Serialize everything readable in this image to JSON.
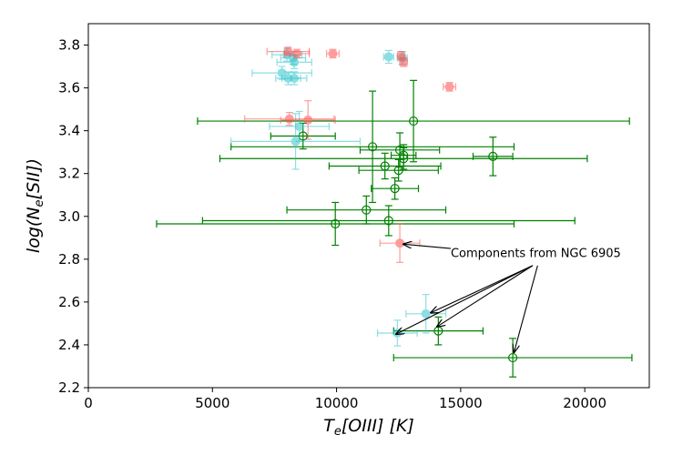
{
  "chart_data": {
    "type": "scatter",
    "title": "",
    "xlabel": "T_e[OIII] [K]",
    "ylabel": "log(N_e[SII])",
    "xlim": [
      0,
      22600
    ],
    "ylim": [
      2.2,
      3.9
    ],
    "xticks": [
      0,
      5000,
      10000,
      15000,
      20000
    ],
    "yticks": [
      2.2,
      2.4,
      2.6,
      2.8,
      3.0,
      3.2,
      3.4,
      3.6,
      3.8
    ],
    "grid": false,
    "colors": {
      "red": "#ff4d4d",
      "cyan": "#2ec4cc",
      "green": "#008000"
    },
    "series": [
      {
        "name": "red",
        "marker": "filled-circle",
        "points": [
          {
            "x": 8050,
            "y": 3.77,
            "xerr": 850,
            "yerr": 0.02
          },
          {
            "x": 8400,
            "y": 3.76,
            "xerr": 500,
            "yerr": 0.02
          },
          {
            "x": 9850,
            "y": 3.76,
            "xerr": 250,
            "yerr": 0.02
          },
          {
            "x": 12600,
            "y": 3.75,
            "xerr": 150,
            "yerr": 0.02
          },
          {
            "x": 12700,
            "y": 3.72,
            "xerr": 150,
            "yerr": 0.02
          },
          {
            "x": 14550,
            "y": 3.605,
            "xerr": 250,
            "yerr": 0.02
          },
          {
            "x": 8100,
            "y": 3.455,
            "xerr": 1800,
            "yerr": 0.03
          },
          {
            "x": 8850,
            "y": 3.45,
            "xerr": 1100,
            "yerr": 0.09
          },
          {
            "x": 12550,
            "y": 2.875,
            "xerr": 800,
            "yerr": 0.09
          }
        ]
      },
      {
        "name": "cyan",
        "marker": "filled-circle",
        "points": [
          {
            "x": 8000,
            "y": 3.755,
            "xerr": 600,
            "yerr": 0.03
          },
          {
            "x": 8250,
            "y": 3.74,
            "xerr": 500,
            "yerr": 0.03
          },
          {
            "x": 8300,
            "y": 3.72,
            "xerr": 700,
            "yerr": 0.03
          },
          {
            "x": 7800,
            "y": 3.67,
            "xerr": 1200,
            "yerr": 0.03
          },
          {
            "x": 8050,
            "y": 3.645,
            "xerr": 500,
            "yerr": 0.03
          },
          {
            "x": 8300,
            "y": 3.645,
            "xerr": 500,
            "yerr": 0.03
          },
          {
            "x": 12100,
            "y": 3.745,
            "xerr": 200,
            "yerr": 0.03
          },
          {
            "x": 12650,
            "y": 3.74,
            "xerr": 200,
            "yerr": 0.03
          },
          {
            "x": 8500,
            "y": 3.42,
            "xerr": 1200,
            "yerr": 0.07
          },
          {
            "x": 8350,
            "y": 3.35,
            "xerr": 2600,
            "yerr": 0.13
          },
          {
            "x": 13600,
            "y": 2.545,
            "xerr": 800,
            "yerr": 0.09
          },
          {
            "x": 12450,
            "y": 2.455,
            "xerr": 800,
            "yerr": 0.06
          }
        ]
      },
      {
        "name": "green",
        "marker": "open-circle",
        "points": [
          {
            "x": 13100,
            "y": 3.445,
            "xerr": 8700,
            "yerr": 0.19
          },
          {
            "x": 8650,
            "y": 3.375,
            "xerr": 1300,
            "yerr": 0.06
          },
          {
            "x": 11450,
            "y": 3.325,
            "xerr": 5700,
            "yerr": 0.26
          },
          {
            "x": 12550,
            "y": 3.31,
            "xerr": 1600,
            "yerr": 0.08
          },
          {
            "x": 12700,
            "y": 3.285,
            "xerr": 500,
            "yerr": 0.05
          },
          {
            "x": 12700,
            "y": 3.27,
            "xerr": 7400,
            "yerr": 0.05
          },
          {
            "x": 16300,
            "y": 3.28,
            "xerr": 800,
            "yerr": 0.09
          },
          {
            "x": 11950,
            "y": 3.235,
            "xerr": 2250,
            "yerr": 0.06
          },
          {
            "x": 12500,
            "y": 3.215,
            "xerr": 1600,
            "yerr": 0.05
          },
          {
            "x": 12350,
            "y": 3.13,
            "xerr": 950,
            "yerr": 0.05
          },
          {
            "x": 11200,
            "y": 3.03,
            "xerr": 3200,
            "yerr": 0.065
          },
          {
            "x": 9950,
            "y": 2.965,
            "xerr": 7200,
            "yerr": 0.1
          },
          {
            "x": 12100,
            "y": 2.98,
            "xerr": 7500,
            "yerr": 0.07
          },
          {
            "x": 14100,
            "y": 2.465,
            "xerr": 1800,
            "yerr": 0.065
          },
          {
            "x": 17100,
            "y": 2.34,
            "xerr": 4800,
            "yerr": 0.09
          }
        ]
      }
    ],
    "annotations": [
      {
        "text": "Components from NGC 6905",
        "text_x": 14600,
        "text_y": 2.81,
        "arrows": [
          {
            "from": [
              14600,
              2.85
            ],
            "to": [
              12700,
              2.87
            ]
          },
          {
            "from": [
              17900,
              2.77
            ],
            "to": [
              13800,
              2.55
            ]
          },
          {
            "from": [
              17900,
              2.77
            ],
            "to": [
              14050,
              2.485
            ]
          },
          {
            "from": [
              17900,
              2.77
            ],
            "to": [
              12400,
              2.45
            ]
          },
          {
            "from": [
              18100,
              2.77
            ],
            "to": [
              17150,
              2.365
            ]
          }
        ]
      }
    ]
  }
}
